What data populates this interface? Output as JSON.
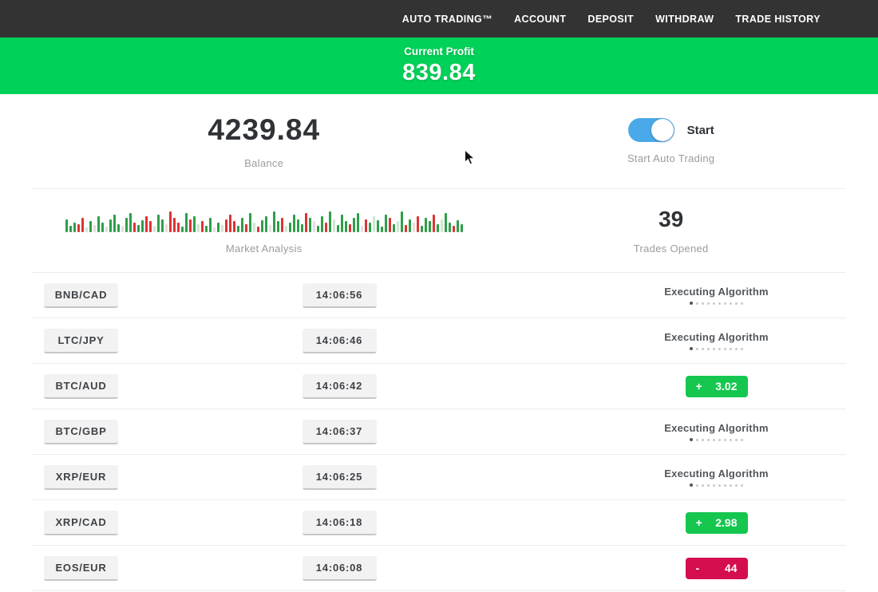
{
  "nav": {
    "items": [
      {
        "label": "AUTO TRADING™"
      },
      {
        "label": "ACCOUNT"
      },
      {
        "label": "DEPOSIT"
      },
      {
        "label": "WITHDRAW"
      },
      {
        "label": "TRADE HISTORY"
      }
    ]
  },
  "banner": {
    "label": "Current Profit",
    "value": "839.84",
    "bg_color": "#00d158"
  },
  "account": {
    "balance": "4239.84",
    "balance_label": "Balance",
    "toggle_label": "Start",
    "toggle_sublabel": "Start Auto Trading",
    "toggle_on": true,
    "toggle_color": "#4aa9e9"
  },
  "market": {
    "label": "Market Analysis",
    "trades_opened": "39",
    "trades_opened_label": "Trades Opened",
    "bar_colors": {
      "g": "#2f9e4a",
      "r": "#dd3434",
      "p": "#cfe7d0",
      "q": "#e9dcdc"
    },
    "bars": [
      [
        16,
        "g"
      ],
      [
        8,
        "g"
      ],
      [
        12,
        "g"
      ],
      [
        10,
        "r"
      ],
      [
        18,
        "r"
      ],
      [
        6,
        "p"
      ],
      [
        14,
        "g"
      ],
      [
        9,
        "q"
      ],
      [
        20,
        "g"
      ],
      [
        12,
        "g"
      ],
      [
        7,
        "p"
      ],
      [
        16,
        "g"
      ],
      [
        22,
        "g"
      ],
      [
        10,
        "g"
      ],
      [
        8,
        "q"
      ],
      [
        18,
        "g"
      ],
      [
        24,
        "g"
      ],
      [
        12,
        "r"
      ],
      [
        9,
        "g"
      ],
      [
        15,
        "g"
      ],
      [
        20,
        "r"
      ],
      [
        14,
        "r"
      ],
      [
        8,
        "p"
      ],
      [
        22,
        "g"
      ],
      [
        16,
        "g"
      ],
      [
        10,
        "q"
      ],
      [
        26,
        "r"
      ],
      [
        18,
        "r"
      ],
      [
        12,
        "r"
      ],
      [
        7,
        "g"
      ],
      [
        24,
        "g"
      ],
      [
        16,
        "r"
      ],
      [
        20,
        "g"
      ],
      [
        10,
        "p"
      ],
      [
        14,
        "r"
      ],
      [
        8,
        "g"
      ],
      [
        18,
        "g"
      ],
      [
        6,
        "q"
      ],
      [
        12,
        "g"
      ],
      [
        9,
        "p"
      ],
      [
        16,
        "r"
      ],
      [
        22,
        "r"
      ],
      [
        14,
        "r"
      ],
      [
        8,
        "g"
      ],
      [
        18,
        "g"
      ],
      [
        10,
        "r"
      ],
      [
        24,
        "g"
      ],
      [
        12,
        "p"
      ],
      [
        7,
        "r"
      ],
      [
        15,
        "g"
      ],
      [
        20,
        "g"
      ],
      [
        9,
        "q"
      ],
      [
        26,
        "g"
      ],
      [
        14,
        "g"
      ],
      [
        18,
        "r"
      ],
      [
        8,
        "p"
      ],
      [
        12,
        "g"
      ],
      [
        22,
        "g"
      ],
      [
        16,
        "g"
      ],
      [
        10,
        "g"
      ],
      [
        24,
        "r"
      ],
      [
        18,
        "g"
      ],
      [
        14,
        "q"
      ],
      [
        8,
        "g"
      ],
      [
        20,
        "g"
      ],
      [
        12,
        "r"
      ],
      [
        26,
        "g"
      ],
      [
        16,
        "p"
      ],
      [
        9,
        "g"
      ],
      [
        22,
        "g"
      ],
      [
        14,
        "g"
      ],
      [
        10,
        "r"
      ],
      [
        18,
        "g"
      ],
      [
        24,
        "g"
      ],
      [
        8,
        "q"
      ],
      [
        16,
        "r"
      ],
      [
        12,
        "g"
      ],
      [
        20,
        "p"
      ],
      [
        15,
        "g"
      ],
      [
        7,
        "g"
      ],
      [
        22,
        "g"
      ],
      [
        18,
        "r"
      ],
      [
        10,
        "g"
      ],
      [
        14,
        "p"
      ],
      [
        26,
        "g"
      ],
      [
        9,
        "r"
      ],
      [
        16,
        "g"
      ],
      [
        12,
        "q"
      ],
      [
        20,
        "r"
      ],
      [
        8,
        "g"
      ],
      [
        18,
        "g"
      ],
      [
        14,
        "g"
      ],
      [
        22,
        "r"
      ],
      [
        10,
        "g"
      ],
      [
        16,
        "p"
      ],
      [
        24,
        "g"
      ],
      [
        12,
        "g"
      ],
      [
        8,
        "r"
      ],
      [
        15,
        "g"
      ],
      [
        10,
        "g"
      ]
    ]
  },
  "status": {
    "executing_label": "Executing Algorithm",
    "dot_count": 10
  },
  "result_colors": {
    "green": "#15c64f",
    "red": "#d30d4e"
  },
  "trades": [
    {
      "pair": "BNB/CAD",
      "time": "14:06:56",
      "status": "executing"
    },
    {
      "pair": "LTC/JPY",
      "time": "14:06:46",
      "status": "executing"
    },
    {
      "pair": "BTC/AUD",
      "time": "14:06:42",
      "status": "result",
      "sign": "+",
      "value": "3.02",
      "result_type": "green"
    },
    {
      "pair": "BTC/GBP",
      "time": "14:06:37",
      "status": "executing"
    },
    {
      "pair": "XRP/EUR",
      "time": "14:06:25",
      "status": "executing"
    },
    {
      "pair": "XRP/CAD",
      "time": "14:06:18",
      "status": "result",
      "sign": "+",
      "value": "2.98",
      "result_type": "green"
    },
    {
      "pair": "EOS/EUR",
      "time": "14:06:08",
      "status": "result",
      "sign": "-",
      "value": "44",
      "result_type": "red"
    }
  ]
}
